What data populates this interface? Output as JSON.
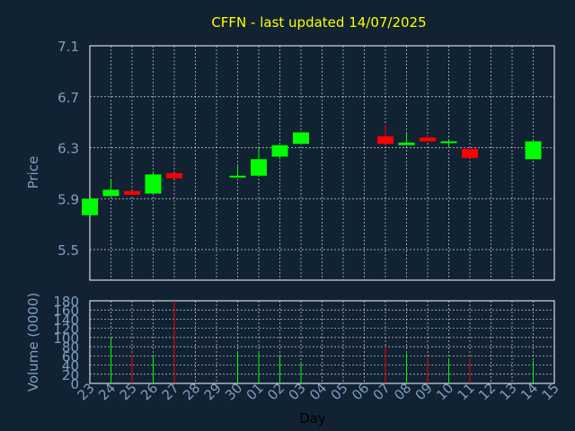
{
  "chart_data": [
    {
      "type": "candlestick",
      "title": "CFFN - last updated 14/07/2025",
      "ylabel": "Price",
      "ylim": [
        5.5,
        7.1
      ],
      "yticks": [
        "5.5",
        "5.9",
        "6.3",
        "6.7",
        "7.1"
      ],
      "ytick_values": [
        5.5,
        5.9,
        6.3,
        6.7,
        7.1
      ],
      "grid": true,
      "colors": {
        "up": "#00ff00",
        "down": "#ff0000",
        "grid": "#ffffff",
        "background": "#112233",
        "title": "#ffff00",
        "axis_text": "#7f9fbf"
      },
      "candles": [
        {
          "day": "23",
          "open": 5.77,
          "close": 5.9,
          "high": 5.9,
          "low": 5.77
        },
        {
          "day": "24",
          "open": 5.92,
          "close": 5.97,
          "high": 6.05,
          "low": 5.92
        },
        {
          "day": "25",
          "open": 5.96,
          "close": 5.93,
          "high": 5.96,
          "low": 5.93
        },
        {
          "day": "26",
          "open": 5.94,
          "close": 6.09,
          "high": 6.11,
          "low": 5.94
        },
        {
          "day": "27",
          "open": 6.1,
          "close": 6.06,
          "high": 6.1,
          "low": 6.06
        },
        {
          "day": "30",
          "open": 6.07,
          "close": 6.08,
          "high": 6.16,
          "low": 6.07
        },
        {
          "day": "01",
          "open": 6.08,
          "close": 6.21,
          "high": 6.3,
          "low": 6.08
        },
        {
          "day": "02",
          "open": 6.23,
          "close": 6.32,
          "high": 6.32,
          "low": 6.21
        },
        {
          "day": "03",
          "open": 6.33,
          "close": 6.42,
          "high": 6.42,
          "low": 6.33
        },
        {
          "day": "07",
          "open": 6.39,
          "close": 6.33,
          "high": 6.48,
          "low": 6.33
        },
        {
          "day": "08",
          "open": 6.32,
          "close": 6.34,
          "high": 6.41,
          "low": 6.32
        },
        {
          "day": "09",
          "open": 6.38,
          "close": 6.35,
          "high": 6.4,
          "low": 6.35
        },
        {
          "day": "10",
          "open": 6.34,
          "close": 6.35,
          "high": 6.36,
          "low": 6.3
        },
        {
          "day": "11",
          "open": 6.29,
          "close": 6.22,
          "high": 6.29,
          "low": 6.22
        },
        {
          "day": "14",
          "open": 6.21,
          "close": 6.35,
          "high": 6.36,
          "low": 6.21
        }
      ]
    },
    {
      "type": "bar",
      "ylabel": "Volume (0000)",
      "xlabel": "Day",
      "ylim": [
        0,
        180
      ],
      "yticks": [
        "0",
        "20",
        "40",
        "60",
        "80",
        "100",
        "120",
        "140",
        "160",
        "180"
      ],
      "ytick_values": [
        0,
        20,
        40,
        60,
        80,
        100,
        120,
        140,
        160,
        180
      ],
      "categories": [
        "23",
        "24",
        "25",
        "26",
        "27",
        "28",
        "29",
        "30",
        "01",
        "02",
        "03",
        "04",
        "05",
        "06",
        "07",
        "08",
        "09",
        "10",
        "11",
        "12",
        "13",
        "14",
        "15"
      ],
      "volumes": [
        {
          "day": "24",
          "value": 98,
          "direction": "up"
        },
        {
          "day": "25",
          "value": 63,
          "direction": "down"
        },
        {
          "day": "26",
          "value": 62,
          "direction": "up"
        },
        {
          "day": "27",
          "value": 180,
          "direction": "down"
        },
        {
          "day": "30",
          "value": 70,
          "direction": "up"
        },
        {
          "day": "01",
          "value": 70,
          "direction": "up"
        },
        {
          "day": "02",
          "value": 60,
          "direction": "up"
        },
        {
          "day": "03",
          "value": 45,
          "direction": "up"
        },
        {
          "day": "07",
          "value": 80,
          "direction": "down"
        },
        {
          "day": "08",
          "value": 65,
          "direction": "up"
        },
        {
          "day": "09",
          "value": 55,
          "direction": "down"
        },
        {
          "day": "10",
          "value": 55,
          "direction": "up"
        },
        {
          "day": "11",
          "value": 55,
          "direction": "down"
        },
        {
          "day": "14",
          "value": 50,
          "direction": "up"
        }
      ]
    }
  ]
}
